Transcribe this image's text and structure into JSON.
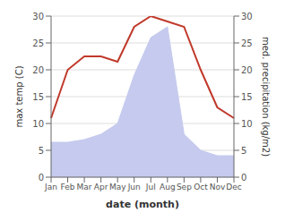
{
  "chart_data": {
    "type": "combo",
    "categories": [
      "Jan",
      "Feb",
      "Mar",
      "Apr",
      "May",
      "Jun",
      "Jul",
      "Aug",
      "Sep",
      "Oct",
      "Nov",
      "Dec"
    ],
    "series": [
      {
        "type": "area",
        "axis": "y2",
        "color": "#c5caee",
        "values": [
          6.5,
          6.5,
          7,
          8,
          10,
          19,
          26,
          28,
          8,
          5,
          4,
          4
        ]
      },
      {
        "type": "line",
        "color": "#c0392b",
        "values": [
          11,
          20,
          22.5,
          22.5,
          21.5,
          28,
          30,
          29,
          28,
          20,
          13,
          11
        ]
      }
    ],
    "xlabel": "date (month)",
    "ylabel": "max temp (C)",
    "y2label": "med. precipitation (kg/m2)",
    "ylim": [
      0,
      30
    ],
    "yticks": [
      0,
      5,
      10,
      15,
      20,
      25,
      30
    ],
    "y2lim": [
      0,
      30
    ],
    "y2ticks": [
      0,
      5,
      10,
      15,
      20,
      25,
      30
    ],
    "grid": true
  }
}
